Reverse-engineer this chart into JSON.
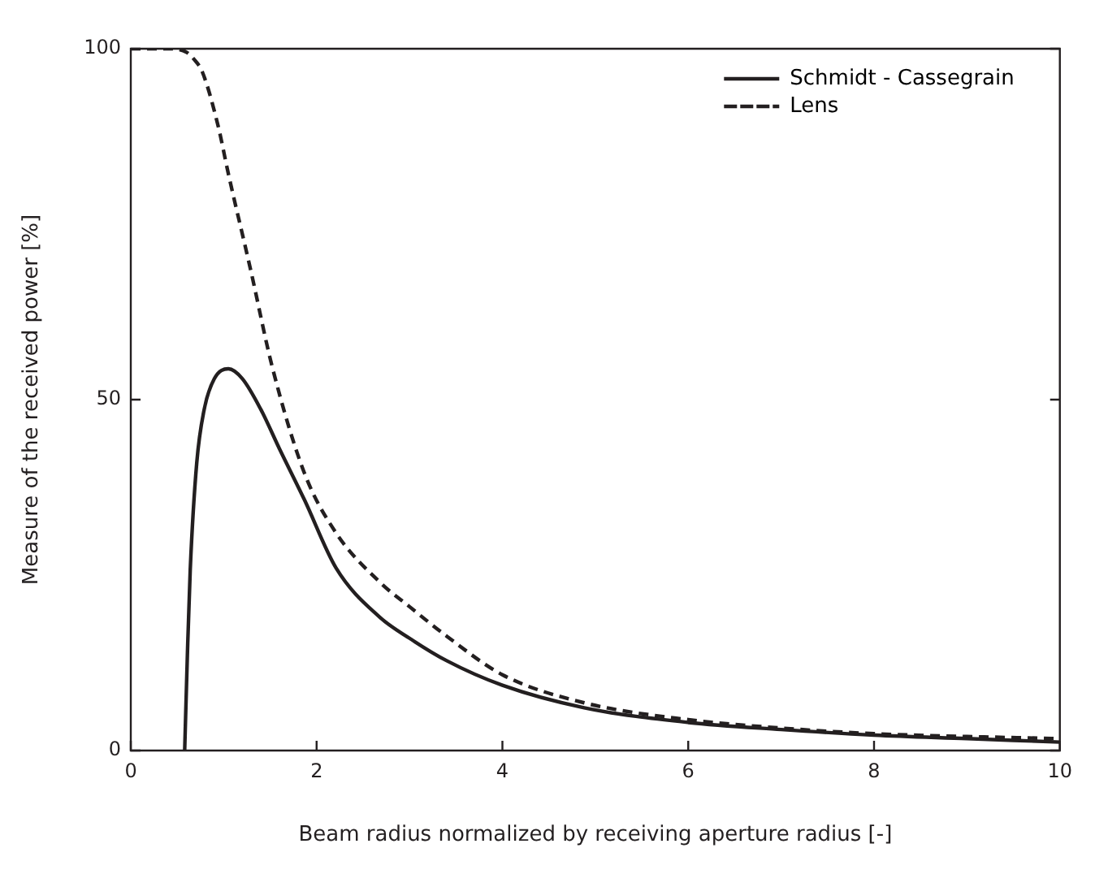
{
  "chart_data": {
    "type": "line",
    "xlabel": "Beam radius normalized by receiving aperture radius [-]",
    "ylabel": "Measure of the received power [%]",
    "xlim": [
      0,
      10
    ],
    "ylim": [
      0,
      100
    ],
    "xticks": [
      0,
      2,
      4,
      6,
      8,
      10
    ],
    "yticks": [
      0,
      50,
      100
    ],
    "grid": false,
    "legend": "top right",
    "marker": "none",
    "series": [
      {
        "name": "Schmidt - Cassegrain",
        "color": "#231f20",
        "line_style": "solid",
        "x": [
          0.58,
          0.61,
          0.64,
          0.71,
          0.79,
          0.9,
          1.05,
          1.2,
          1.4,
          1.6,
          1.87,
          2.21,
          2.68,
          3.0,
          3.4,
          4,
          4.88,
          6,
          7,
          8,
          9,
          10
        ],
        "values": [
          0,
          14,
          25.8,
          41,
          48.6,
          53,
          54.4,
          53,
          48.6,
          43,
          35.7,
          26,
          19,
          16,
          12.8,
          9.3,
          6.1,
          4,
          3,
          2.2,
          1.7,
          1.2
        ]
      },
      {
        "name": "Lens",
        "color": "#231f20",
        "line_style": "dashed",
        "x": [
          0,
          0.4,
          0.6,
          0.68,
          0.77,
          0.94,
          1.05,
          1.29,
          1.52,
          1.87,
          2.21,
          2.68,
          3.0,
          3.4,
          4,
          4.88,
          6,
          7,
          8,
          9,
          10
        ],
        "values": [
          100,
          100,
          99.5,
          98.5,
          96.7,
          89,
          82.2,
          68.5,
          54.8,
          39.5,
          31,
          24,
          20.5,
          16.3,
          10.8,
          6.8,
          4.4,
          3.2,
          2.4,
          2,
          1.7
        ]
      }
    ]
  }
}
